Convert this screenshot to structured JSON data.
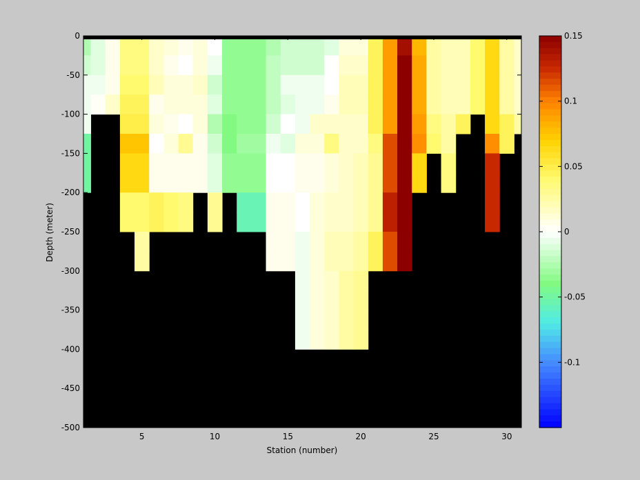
{
  "chart_data": {
    "type": "heatmap",
    "xlabel": "Station (number)",
    "ylabel": "Depth (meter)",
    "xlim": [
      1,
      31
    ],
    "ylim": [
      -500,
      0
    ],
    "xticks": [
      5,
      10,
      15,
      20,
      25,
      30
    ],
    "yticks": [
      0,
      -50,
      -100,
      -150,
      -200,
      -250,
      -300,
      -350,
      -400,
      -450,
      -500
    ],
    "colorbar": {
      "range": [
        -0.15,
        0.15
      ],
      "ticks": [
        0.15,
        0.1,
        0.05,
        0,
        -0.05,
        -0.1
      ],
      "colormap": "jet-white-center"
    },
    "fill_color": "#000000",
    "top_band_color": "#000000",
    "row_depths": [
      -12.5,
      -37.5,
      -62.5,
      -87.5,
      -112.5,
      -137.5,
      -162.5,
      -187.5,
      -212.5,
      -237.5,
      -262.5,
      -287.5,
      -312.5,
      -337.5,
      -362.5,
      -387.5
    ],
    "stations": [
      {
        "x": 1,
        "values": [
          -0.025,
          -0.015,
          -0.005,
          -0.005,
          -0.005,
          -0.05,
          -0.05,
          -0.05
        ]
      },
      {
        "x": 2,
        "values": [
          -0.01,
          -0.01,
          -0.005,
          0.002
        ]
      },
      {
        "x": 3,
        "values": [
          0.005,
          0.005,
          0.005,
          0.015
        ]
      },
      {
        "x": 4,
        "values": [
          0.035,
          0.035,
          0.04,
          0.045,
          0.05,
          0.075,
          0.065,
          0.065,
          0.04,
          0.04
        ]
      },
      {
        "x": 5,
        "values": [
          0.035,
          0.035,
          0.04,
          0.045,
          0.05,
          0.075,
          0.065,
          0.065,
          0.04,
          0.04,
          0.025,
          0.025
        ]
      },
      {
        "x": 6,
        "values": [
          0.015,
          0.015,
          0.02,
          0.005,
          0.01,
          0.0,
          0.005,
          0.005,
          0.045,
          0.045
        ]
      },
      {
        "x": 7,
        "values": [
          0.01,
          0.005,
          0.01,
          0.01,
          0.005,
          0.01,
          0.005,
          0.005,
          0.04,
          0.04
        ]
      },
      {
        "x": 8,
        "values": [
          0.005,
          0.0,
          0.01,
          0.01,
          0.0,
          0.03,
          0.005,
          0.005,
          0.035,
          0.035
        ]
      },
      {
        "x": 9,
        "values": [
          0.01,
          0.01,
          0.015,
          0.01,
          0.01,
          0.005,
          0.005,
          0.005
        ]
      },
      {
        "x": 10,
        "values": [
          0.0,
          -0.005,
          -0.015,
          -0.01,
          -0.025,
          -0.015,
          -0.01,
          -0.01,
          0.03,
          0.03
        ]
      },
      {
        "x": 11,
        "values": [
          -0.035,
          -0.035,
          -0.035,
          -0.035,
          -0.04,
          -0.04,
          -0.035,
          -0.035
        ]
      },
      {
        "x": 12,
        "values": [
          -0.035,
          -0.035,
          -0.035,
          -0.035,
          -0.035,
          -0.03,
          -0.035,
          -0.035,
          -0.055,
          -0.055
        ]
      },
      {
        "x": 13,
        "values": [
          -0.035,
          -0.035,
          -0.035,
          -0.035,
          -0.035,
          -0.03,
          -0.035,
          -0.035,
          -0.055,
          -0.055
        ]
      },
      {
        "x": 14,
        "values": [
          -0.025,
          -0.02,
          -0.02,
          -0.02,
          -0.015,
          -0.005,
          0.0,
          0.0,
          0.005,
          0.005,
          0.005,
          0.005
        ]
      },
      {
        "x": 15,
        "values": [
          -0.015,
          -0.015,
          -0.005,
          -0.01,
          0.0,
          -0.01,
          0.0,
          0.0,
          0.005,
          0.005,
          0.005,
          0.005
        ]
      },
      {
        "x": 16,
        "values": [
          -0.015,
          -0.015,
          -0.005,
          -0.005,
          -0.005,
          0.01,
          0.005,
          0.005,
          0.0,
          0.0,
          -0.005,
          -0.005,
          -0.005,
          -0.005,
          -0.005,
          -0.005
        ]
      },
      {
        "x": 17,
        "values": [
          -0.015,
          -0.015,
          -0.005,
          -0.005,
          0.015,
          0.01,
          0.005,
          0.005,
          0.01,
          0.01,
          0.01,
          0.01,
          0.01,
          0.01,
          0.01,
          0.01
        ]
      },
      {
        "x": 18,
        "values": [
          -0.01,
          0.0,
          0.0,
          0.005,
          0.015,
          0.035,
          0.01,
          0.01,
          0.015,
          0.015,
          0.02,
          0.02,
          0.015,
          0.015,
          0.015,
          0.015
        ]
      },
      {
        "x": 19,
        "values": [
          0.01,
          0.015,
          0.02,
          0.02,
          0.015,
          0.015,
          0.015,
          0.015,
          0.015,
          0.015,
          0.02,
          0.02,
          0.025,
          0.025,
          0.025,
          0.025
        ]
      },
      {
        "x": 20,
        "values": [
          0.01,
          0.015,
          0.02,
          0.02,
          0.015,
          0.015,
          0.02,
          0.02,
          0.02,
          0.02,
          0.025,
          0.025,
          0.03,
          0.03,
          0.03,
          0.03
        ]
      },
      {
        "x": 21,
        "values": [
          0.045,
          0.045,
          0.045,
          0.045,
          0.045,
          0.035,
          0.03,
          0.03,
          0.03,
          0.03,
          0.045,
          0.045
        ]
      },
      {
        "x": 22,
        "values": [
          0.09,
          0.09,
          0.09,
          0.09,
          0.09,
          0.115,
          0.115,
          0.115,
          0.13,
          0.13,
          0.115,
          0.115
        ]
      },
      {
        "x": 23,
        "values": [
          0.14,
          0.15,
          0.15,
          0.15,
          0.15,
          0.15,
          0.15,
          0.15,
          0.15,
          0.15,
          0.15,
          0.15
        ]
      },
      {
        "x": 24,
        "values": [
          0.08,
          0.085,
          0.085,
          0.085,
          0.09,
          0.095,
          0.065,
          0.065
        ]
      },
      {
        "x": 25,
        "values": [
          0.025,
          0.025,
          0.025,
          0.025,
          0.035,
          0.04
        ]
      },
      {
        "x": 26,
        "values": [
          0.02,
          0.02,
          0.02,
          0.02,
          0.025,
          0.025,
          0.035,
          0.035
        ]
      },
      {
        "x": 27,
        "values": [
          0.02,
          0.02,
          0.02,
          0.02,
          0.045
        ]
      },
      {
        "x": 28,
        "values": [
          0.04,
          0.04,
          0.04,
          0.04
        ]
      },
      {
        "x": 29,
        "values": [
          0.065,
          0.065,
          0.065,
          0.065,
          0.065,
          0.095,
          0.125,
          0.125,
          0.125,
          0.125
        ]
      },
      {
        "x": 30,
        "values": [
          0.025,
          0.025,
          0.025,
          0.025,
          0.045,
          0.045
        ]
      },
      {
        "x": 31,
        "values": [
          0.015,
          0.015,
          0.015,
          0.015,
          0.025
        ]
      }
    ]
  }
}
